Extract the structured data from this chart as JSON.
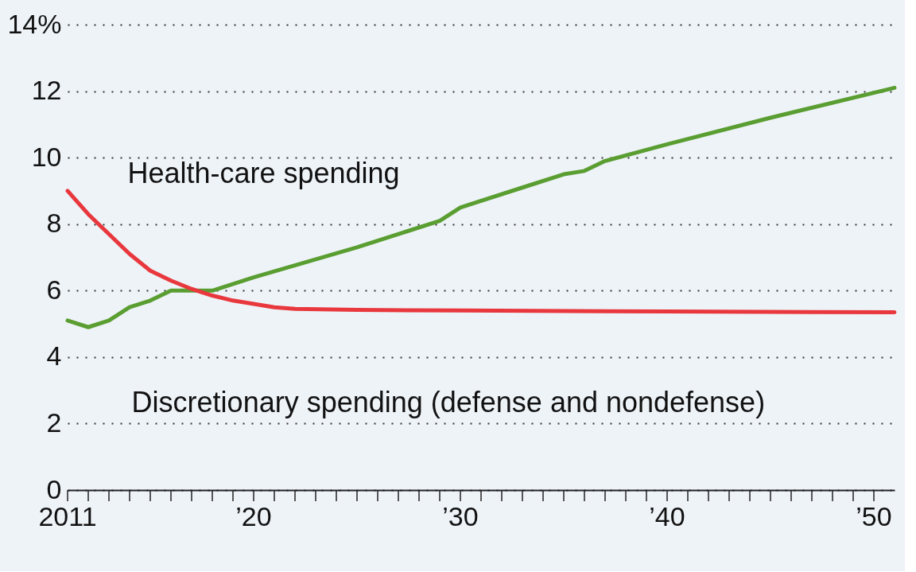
{
  "chart_data": {
    "type": "line",
    "series": [
      {
        "name": "Health-care spending",
        "color": "#5a9e32",
        "x": [
          2011,
          2012,
          2013,
          2014,
          2015,
          2016,
          2017,
          2018,
          2020,
          2025,
          2029,
          2030,
          2033,
          2035,
          2036,
          2037,
          2040,
          2045,
          2051
        ],
        "values": [
          5.1,
          4.9,
          5.1,
          5.5,
          5.7,
          6.0,
          6.0,
          6.0,
          6.4,
          7.3,
          8.1,
          8.5,
          9.1,
          9.5,
          9.6,
          9.9,
          10.4,
          11.2,
          12.1
        ]
      },
      {
        "name": "Discretionary spending (defense and nondefense)",
        "color": "#e8383d",
        "x": [
          2011,
          2012,
          2013,
          2014,
          2015,
          2016,
          2017,
          2018,
          2019,
          2020,
          2021,
          2022,
          2025,
          2030,
          2040,
          2051
        ],
        "values": [
          9.0,
          8.3,
          7.7,
          7.1,
          6.6,
          6.3,
          6.05,
          5.85,
          5.7,
          5.6,
          5.5,
          5.45,
          5.42,
          5.4,
          5.37,
          5.35
        ]
      }
    ],
    "xlim": [
      2011,
      2051
    ],
    "xticks": [
      {
        "value": 2011,
        "label": "2011"
      },
      {
        "value": 2012,
        "label": null
      },
      {
        "value": 2013,
        "label": null
      },
      {
        "value": 2014,
        "label": null
      },
      {
        "value": 2015,
        "label": null
      },
      {
        "value": 2016,
        "label": null
      },
      {
        "value": 2017,
        "label": null
      },
      {
        "value": 2018,
        "label": null
      },
      {
        "value": 2019,
        "label": null
      },
      {
        "value": 2020,
        "label": "’20"
      },
      {
        "value": 2021,
        "label": null
      },
      {
        "value": 2022,
        "label": null
      },
      {
        "value": 2023,
        "label": null
      },
      {
        "value": 2024,
        "label": null
      },
      {
        "value": 2025,
        "label": null
      },
      {
        "value": 2026,
        "label": null
      },
      {
        "value": 2027,
        "label": null
      },
      {
        "value": 2028,
        "label": null
      },
      {
        "value": 2029,
        "label": null
      },
      {
        "value": 2030,
        "label": "’30"
      },
      {
        "value": 2031,
        "label": null
      },
      {
        "value": 2032,
        "label": null
      },
      {
        "value": 2033,
        "label": null
      },
      {
        "value": 2034,
        "label": null
      },
      {
        "value": 2035,
        "label": null
      },
      {
        "value": 2036,
        "label": null
      },
      {
        "value": 2037,
        "label": null
      },
      {
        "value": 2038,
        "label": null
      },
      {
        "value": 2039,
        "label": null
      },
      {
        "value": 2040,
        "label": "’40"
      },
      {
        "value": 2041,
        "label": null
      },
      {
        "value": 2042,
        "label": null
      },
      {
        "value": 2043,
        "label": null
      },
      {
        "value": 2044,
        "label": null
      },
      {
        "value": 2045,
        "label": null
      },
      {
        "value": 2046,
        "label": null
      },
      {
        "value": 2047,
        "label": null
      },
      {
        "value": 2048,
        "label": null
      },
      {
        "value": 2049,
        "label": null
      },
      {
        "value": 2050,
        "label": "’50"
      }
    ],
    "ylim": [
      0,
      14
    ],
    "yticks": [
      0,
      2,
      4,
      6,
      8,
      10,
      12,
      {
        "value": 14,
        "label": "14%"
      }
    ],
    "grid": "y",
    "legend": false,
    "marker": "none",
    "line_style": "solid"
  }
}
